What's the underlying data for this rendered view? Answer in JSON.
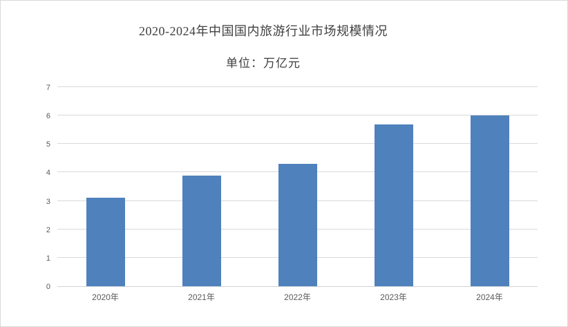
{
  "frame": {
    "background_color": "#FFFFFF",
    "border_color": "#D9D9D9"
  },
  "chart_data": {
    "type": "bar",
    "title": "2020-2024年中国国内旅游行业市场规模情况",
    "unit_label": "单位：万亿元",
    "categories": [
      "2020年",
      "2021年",
      "2022年",
      "2023年",
      "2024年"
    ],
    "values": [
      3.1,
      3.9,
      4.3,
      5.7,
      6.0
    ],
    "xlabel": "",
    "ylabel": "",
    "ylim": [
      0,
      7
    ],
    "yticks": [
      0,
      1,
      2,
      3,
      4,
      5,
      6,
      7
    ],
    "grid": true,
    "legend_position": "none",
    "bar_color": "#4F81BD",
    "gridline_color": "#D9D9D9",
    "axis_label_color": "#595959",
    "title_color": "#404040"
  }
}
